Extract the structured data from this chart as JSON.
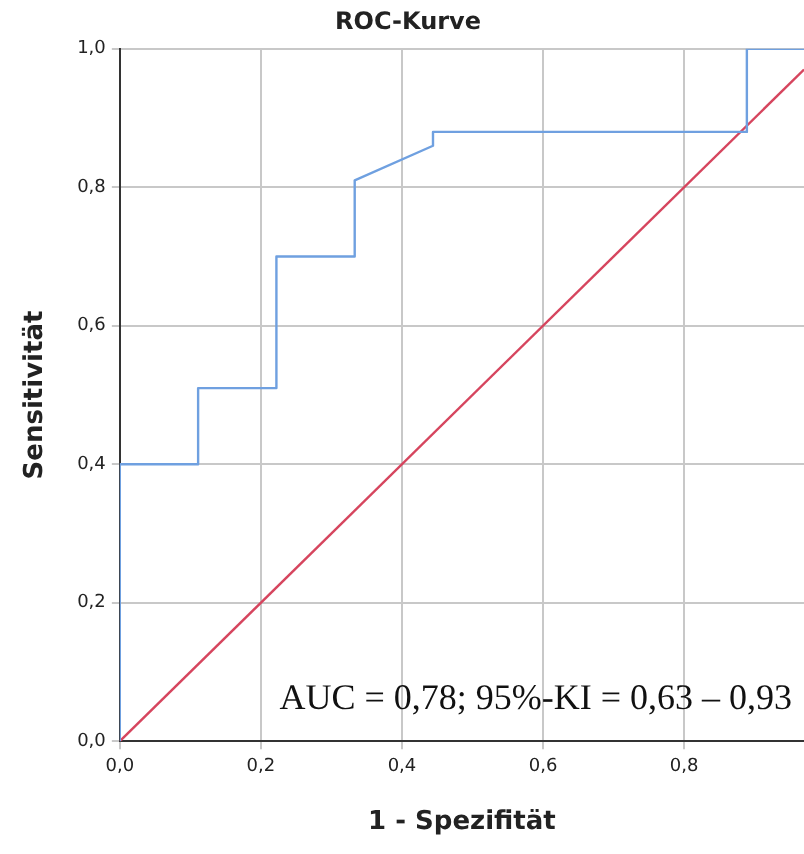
{
  "chart_data": {
    "type": "line",
    "title": "ROC-Kurve",
    "xlabel": "1 - Spezifität",
    "ylabel": "Sensitivität",
    "series": [
      {
        "color": "#6fa0e0",
        "x": [
          0,
          0,
          0.111,
          0.111,
          0.222,
          0.222,
          0.333,
          0.333,
          0.444,
          0.444,
          0.889,
          0.889,
          0.97
        ],
        "values": [
          0,
          0.4,
          0.4,
          0.51,
          0.51,
          0.7,
          0.7,
          0.81,
          0.86,
          0.88,
          0.88,
          1,
          1
        ]
      },
      {
        "color": "#d6455e",
        "x": [
          0,
          0.97
        ],
        "values": [
          0,
          0.97
        ]
      }
    ],
    "xlim": [
      0,
      0.97
    ],
    "ylim": [
      0,
      1
    ],
    "xticks": [
      {
        "value": 0,
        "label": "0,0"
      },
      {
        "value": 0.2,
        "label": "0,2"
      },
      {
        "value": 0.4,
        "label": "0,4"
      },
      {
        "value": 0.6,
        "label": "0,6"
      },
      {
        "value": 0.8,
        "label": "0,8"
      }
    ],
    "yticks": [
      {
        "value": 0,
        "label": "0,0"
      },
      {
        "value": 0.2,
        "label": "0,2"
      },
      {
        "value": 0.4,
        "label": "0,4"
      },
      {
        "value": 0.6,
        "label": "0,6"
      },
      {
        "value": 0.8,
        "label": "0,8"
      },
      {
        "value": 1,
        "label": "1,0"
      }
    ],
    "grid": true,
    "marker": "none",
    "line_style": "solid",
    "annotations": [
      "AUC = 0,78; 95%-KI = 0,63 – 0,93"
    ]
  }
}
